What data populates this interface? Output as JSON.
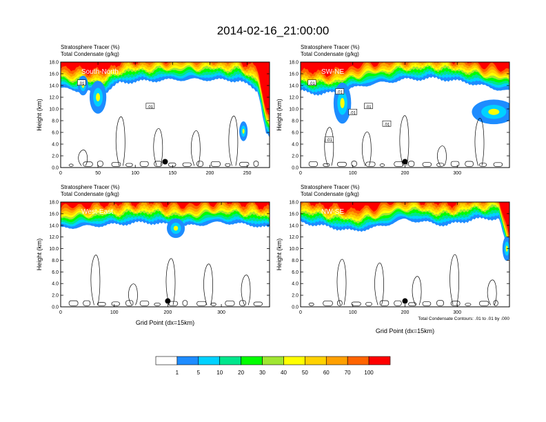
{
  "title": "2014-02-16_21:00:00",
  "chart_data": {
    "type": "heatmap",
    "colorbar": {
      "labels": [
        "1",
        "5",
        "10",
        "20",
        "30",
        "40",
        "50",
        "60",
        "70",
        "100"
      ],
      "levels": [
        0,
        1,
        5,
        10,
        20,
        30,
        40,
        50,
        60,
        70,
        100
      ],
      "colors": [
        "#ffffff",
        "#1e8cff",
        "#00d2ff",
        "#00e68c",
        "#00ff00",
        "#a0e632",
        "#ffff00",
        "#ffd200",
        "#ffa000",
        "#ff6400",
        "#ff0000"
      ]
    },
    "panels": [
      {
        "left_title_1": "Stratosphere Tracer   (%)",
        "left_title_2": "Total Condensate   (g/kg)",
        "label": "South-North",
        "ylabel": "Height (km)",
        "xlabel": "",
        "xlim": [
          0,
          280
        ],
        "ylim": [
          0,
          18
        ],
        "xticks": [
          "0",
          "50",
          "100",
          "150",
          "200",
          "250"
        ],
        "xtick_values": [
          0,
          50,
          100,
          150,
          200,
          250
        ],
        "yticks": [
          "0.0",
          "2.0",
          "4.0",
          "6.0",
          "8.0",
          "10.0",
          "12.0",
          "14.0",
          "16.0",
          "18.0"
        ],
        "tracer_base": [
          [
            0,
            13.5
          ],
          [
            30,
            13.0
          ],
          [
            60,
            12.8
          ],
          [
            80,
            14.5
          ],
          [
            120,
            14.8
          ],
          [
            160,
            15.0
          ],
          [
            200,
            15.0
          ],
          [
            240,
            14.8
          ],
          [
            265,
            13.0
          ],
          [
            275,
            6.0
          ],
          [
            280,
            5.0
          ]
        ],
        "blobs": [
          [
            50,
            12.0,
            8,
            2.0
          ],
          [
            245,
            6.2,
            4,
            1.2
          ],
          [
            30,
            14.0,
            5,
            1.2
          ]
        ],
        "contour_labels": [
          {
            "x": 28,
            "y": 14.5,
            "t": ".01"
          },
          {
            "x": 120,
            "y": 10.5,
            "t": ".01"
          }
        ],
        "marker": [
          140,
          1.0
        ]
      },
      {
        "left_title_1": "Stratosphere Tracer   (%)",
        "left_title_2": "Total Condensate   (g/kg)",
        "label": "SW-NE",
        "ylabel": "Height (km)",
        "xlabel": "",
        "xlim": [
          0,
          400
        ],
        "ylim": [
          0,
          18
        ],
        "xticks": [
          "0",
          "100",
          "200",
          "300"
        ],
        "xtick_values": [
          0,
          100,
          200,
          300
        ],
        "yticks": [
          "0.0",
          "2.0",
          "4.0",
          "6.0",
          "8.0",
          "10.0",
          "12.0",
          "14.0",
          "16.0",
          "18.0"
        ],
        "tracer_base": [
          [
            0,
            13.0
          ],
          [
            40,
            12.5
          ],
          [
            80,
            13.0
          ],
          [
            120,
            14.0
          ],
          [
            200,
            15.0
          ],
          [
            260,
            15.2
          ],
          [
            320,
            14.5
          ],
          [
            370,
            13.5
          ],
          [
            400,
            13.0
          ]
        ],
        "blobs": [
          [
            80,
            11.0,
            12,
            2.5
          ],
          [
            370,
            9.5,
            30,
            1.5
          ]
        ],
        "contour_labels": [
          {
            "x": 22,
            "y": 14.5,
            "t": ".01"
          },
          {
            "x": 75,
            "y": 13.0,
            "t": ".01"
          },
          {
            "x": 100,
            "y": 9.5,
            "t": ".01"
          },
          {
            "x": 130,
            "y": 10.5,
            "t": ".01"
          },
          {
            "x": 165,
            "y": 7.5,
            "t": ".01"
          },
          {
            "x": 55,
            "y": 4.8,
            "t": ".01"
          }
        ],
        "marker": [
          200,
          1.0
        ]
      },
      {
        "left_title_1": "Stratosphere Tracer   (%)",
        "left_title_2": "Total Condensate   (g/kg)",
        "label": "West-East",
        "ylabel": "Height (km)",
        "xlabel": "Grid Point (dx=15km)",
        "xlim": [
          0,
          390
        ],
        "ylim": [
          0,
          18
        ],
        "xticks": [
          "0",
          "100",
          "200",
          "300"
        ],
        "xtick_values": [
          0,
          100,
          200,
          300
        ],
        "yticks": [
          "0.0",
          "2.0",
          "4.0",
          "6.0",
          "8.0",
          "10.0",
          "12.0",
          "14.0",
          "16.0",
          "18.0"
        ],
        "tracer_base": [
          [
            0,
            13.5
          ],
          [
            80,
            14.0
          ],
          [
            160,
            14.5
          ],
          [
            230,
            13.8
          ],
          [
            300,
            14.5
          ],
          [
            360,
            14.0
          ],
          [
            390,
            13.5
          ]
        ],
        "blobs": [
          [
            215,
            13.5,
            12,
            1.2
          ]
        ],
        "contour_labels": [],
        "marker": [
          200,
          1.0
        ]
      },
      {
        "left_title_1": "Stratosphere Tracer   (%)",
        "left_title_2": "Total Condensate   (g/kg)",
        "label": "NW-SE",
        "ylabel": "Height (km)",
        "xlabel": "Grid Point (dx=15km)",
        "xlim": [
          0,
          400
        ],
        "ylim": [
          0,
          18
        ],
        "xticks": [
          "0",
          "100",
          "200",
          "300"
        ],
        "xtick_values": [
          0,
          100,
          200,
          300
        ],
        "yticks": [
          "0.0",
          "2.0",
          "4.0",
          "6.0",
          "8.0",
          "10.0",
          "12.0",
          "14.0",
          "16.0",
          "18.0"
        ],
        "tracer_base": [
          [
            0,
            14.5
          ],
          [
            100,
            13.0
          ],
          [
            140,
            13.5
          ],
          [
            200,
            15.0
          ],
          [
            280,
            14.0
          ],
          [
            330,
            15.0
          ],
          [
            380,
            15.2
          ],
          [
            395,
            10.0
          ],
          [
            400,
            8.0
          ]
        ],
        "blobs": [
          [
            395,
            10.0,
            6,
            1.5
          ]
        ],
        "contour_labels": [],
        "marker": [
          200,
          1.0
        ],
        "footnote": "Total Condensate Contours: .01 to .01 by .000"
      }
    ]
  }
}
